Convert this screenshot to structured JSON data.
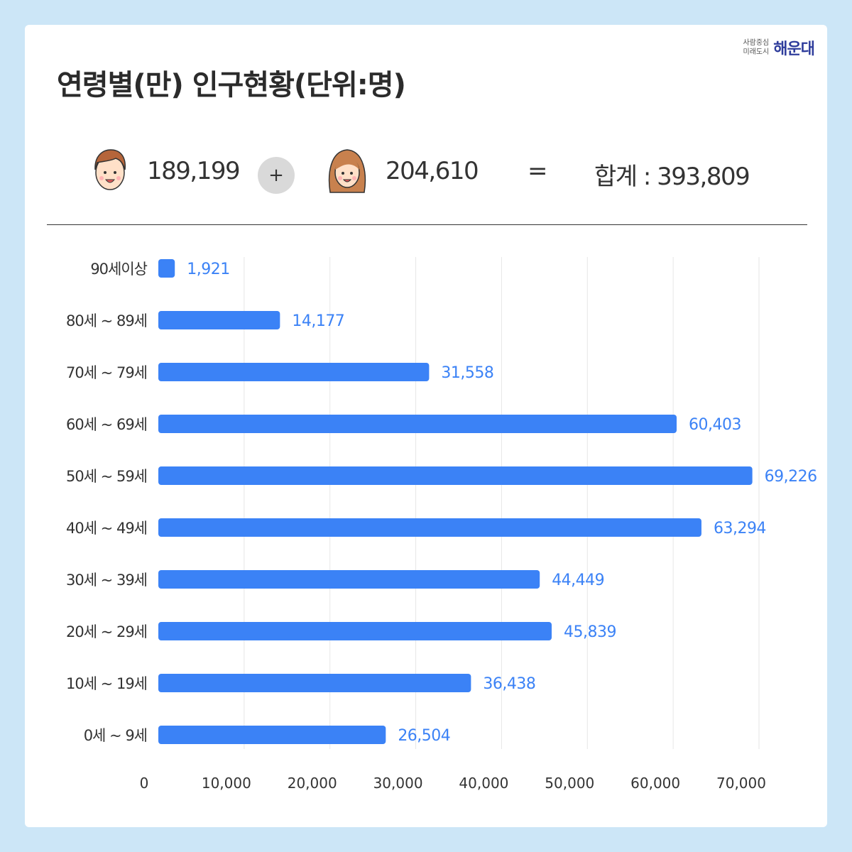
{
  "title": "연령별(만) 인구현황(단위:명)",
  "logo": {
    "slogan_line1": "사람중심",
    "slogan_line2": "미래도시",
    "name": "해운대"
  },
  "summary": {
    "male_icon": "male-avatar-icon",
    "male_count": "189,199",
    "plus_symbol": "+",
    "female_icon": "female-avatar-icon",
    "female_count": "204,610",
    "equals_symbol": "=",
    "total_text": "합계 : 393,809"
  },
  "colors": {
    "bar": "#3b82f6",
    "value_label": "#3b82f6",
    "background": "#cce6f7"
  },
  "chart_data": {
    "type": "bar",
    "orientation": "horizontal",
    "title": "",
    "xlabel": "",
    "ylabel": "",
    "xlim": [
      0,
      70000
    ],
    "x_ticks": [
      "0",
      "10,000",
      "20,000",
      "30,000",
      "40,000",
      "50,000",
      "60,000",
      "70,000"
    ],
    "grid": true,
    "categories": [
      "90세이상",
      "80세 ~ 89세",
      "70세 ~ 79세",
      "60세 ~ 69세",
      "50세 ~ 59세",
      "40세 ~ 49세",
      "30세 ~ 39세",
      "20세 ~ 29세",
      "10세 ~ 19세",
      "0세 ~ 9세"
    ],
    "values": [
      1921,
      14177,
      31558,
      60403,
      69226,
      63294,
      44449,
      45839,
      36438,
      26504
    ],
    "value_labels": [
      "1,921",
      "14,177",
      "31,558",
      "60,403",
      "69,226",
      "63,294",
      "44,449",
      "45,839",
      "36,438",
      "26,504"
    ]
  }
}
